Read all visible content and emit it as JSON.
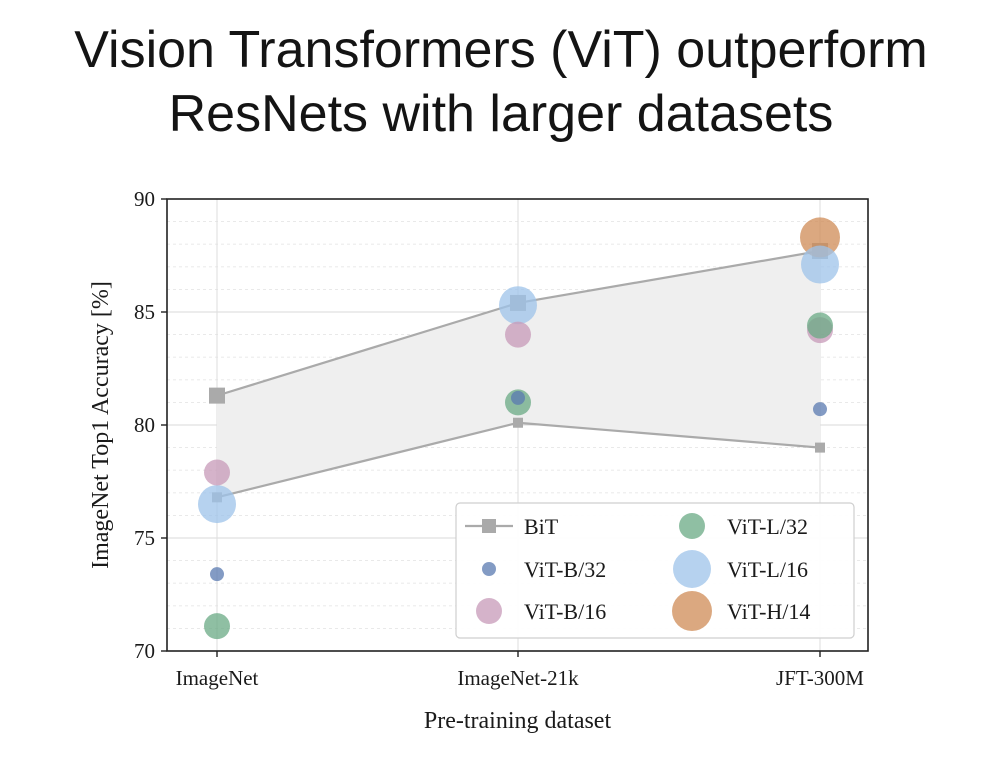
{
  "slide": {
    "title_line1": "Vision Transformers (ViT) outperform",
    "title_line2": "ResNets with larger datasets"
  },
  "chart_data": {
    "type": "scatter",
    "categories": [
      "ImageNet",
      "ImageNet-21k",
      "JFT-300M"
    ],
    "xlabel": "Pre-training dataset",
    "ylabel": "ImageNet Top1 Accuracy [%]",
    "ylim": [
      70,
      90
    ],
    "yticks": [
      70,
      75,
      80,
      85,
      90
    ],
    "grid": true,
    "legend_position": "bottom-right",
    "bit_band": {
      "name": "BiT",
      "color": "#aaaaaa",
      "upper": [
        81.3,
        85.4,
        87.7
      ],
      "lower": [
        76.8,
        80.1,
        79.0
      ]
    },
    "series": [
      {
        "name": "ViT-B/32",
        "color": "#5a7ab0",
        "values": [
          73.4,
          81.2,
          80.7
        ]
      },
      {
        "name": "ViT-B/16",
        "color": "#c79ab8",
        "values": [
          77.9,
          84.0,
          84.2
        ]
      },
      {
        "name": "ViT-L/32",
        "color": "#6aaa84",
        "values": [
          71.1,
          81.0,
          84.4
        ]
      },
      {
        "name": "ViT-L/16",
        "color": "#9dc3ea",
        "values": [
          76.5,
          85.3,
          87.1
        ]
      },
      {
        "name": "ViT-H/14",
        "color": "#cf8b55",
        "values": [
          null,
          null,
          88.3
        ]
      }
    ]
  }
}
